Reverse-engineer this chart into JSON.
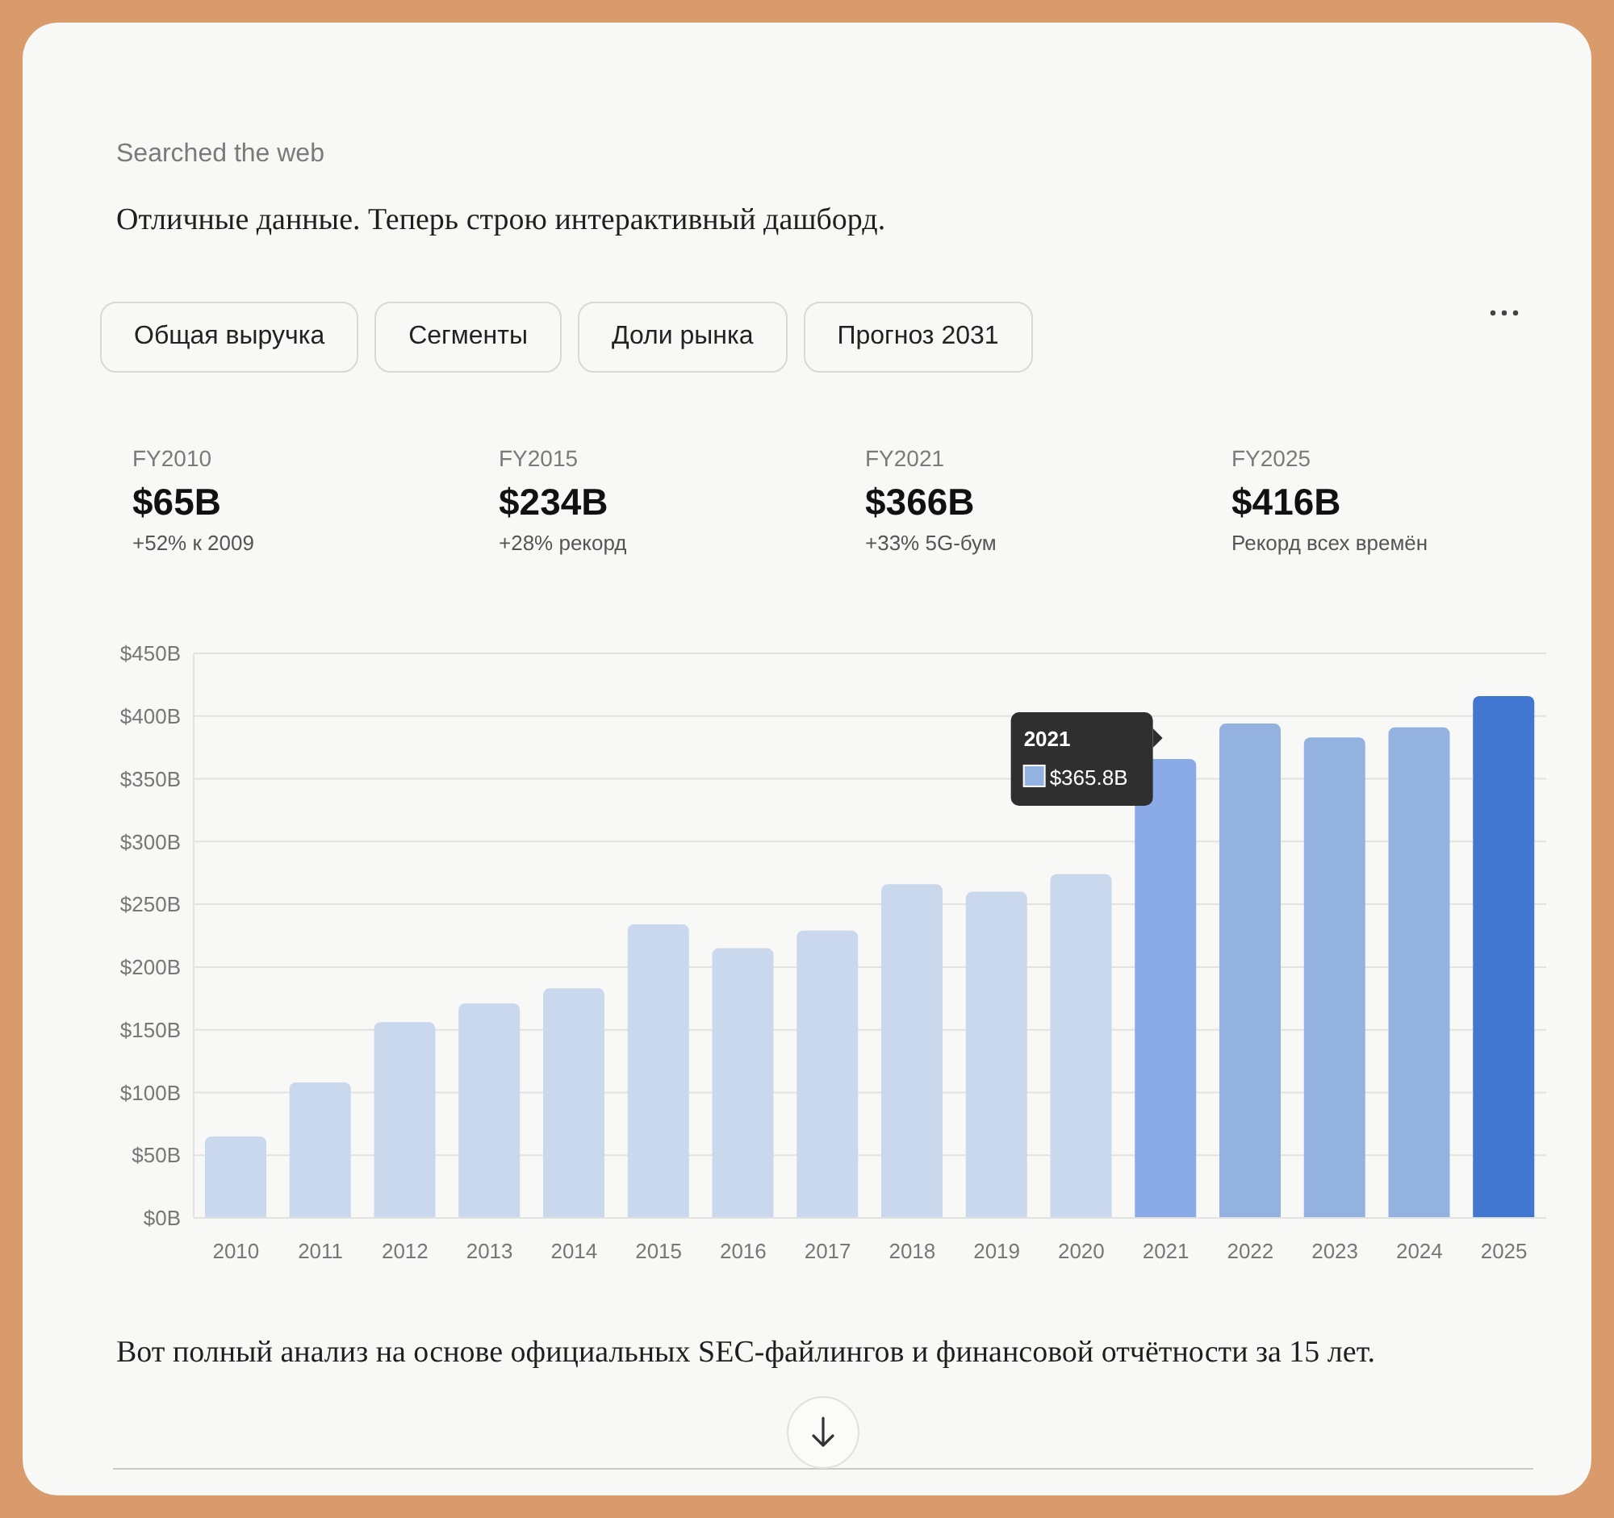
{
  "chart_data": {
    "type": "bar",
    "title": "Отличные данные. Теперь строю интерактивный дашборд.",
    "categories": [
      "2010",
      "2011",
      "2012",
      "2013",
      "2014",
      "2015",
      "2016",
      "2017",
      "2018",
      "2019",
      "2020",
      "2021",
      "2022",
      "2023",
      "2024",
      "2025"
    ],
    "values": [
      65,
      108,
      156,
      171,
      183,
      234,
      215,
      229,
      266,
      260,
      274,
      365.8,
      394,
      383,
      391,
      416
    ],
    "colors": [
      "#c9d8ec",
      "#c9d8ec",
      "#c9d8ec",
      "#c9d8ec",
      "#c9d8ec",
      "#c9d8ec",
      "#c9d8ec",
      "#c9d8ec",
      "#c9d8ec",
      "#c9d8ec",
      "#c9d8ec",
      "#8aaae8",
      "#93b2e0",
      "#93b2e0",
      "#93b2e0",
      "#4177d0"
    ],
    "ylim": [
      0,
      450
    ],
    "yticks": [
      {
        "value": 0,
        "label": "$0B"
      },
      {
        "value": 50,
        "label": "$50B"
      },
      {
        "value": 100,
        "label": "$100B"
      },
      {
        "value": 150,
        "label": "$150B"
      },
      {
        "value": 200,
        "label": "$200B"
      },
      {
        "value": 250,
        "label": "$250B"
      },
      {
        "value": 300,
        "label": "$300B"
      },
      {
        "value": 350,
        "label": "$350B"
      },
      {
        "value": 400,
        "label": "$400B"
      },
      {
        "value": 450,
        "label": "$450B"
      }
    ],
    "grid": "y",
    "legend": false,
    "annotations": [
      "Searched the web",
      "Общая выручка",
      "Сегменты",
      "Доли рынка",
      "Прогноз 2031",
      "FY2010",
      "$65B",
      "+52% к 2009",
      "FY2015",
      "$234B",
      "+28% рекорд",
      "FY2021",
      "$366B",
      "+33% 5G-бум",
      "FY2025",
      "$416B",
      "Рекорд всех времён",
      "Вот полный анализ на основе официальных SEC-файлингов и финансовой отчётности за 15 лет.",
      {
        "text": "$365.8B",
        "x": "2021",
        "y": 365.8
      }
    ]
  }
}
